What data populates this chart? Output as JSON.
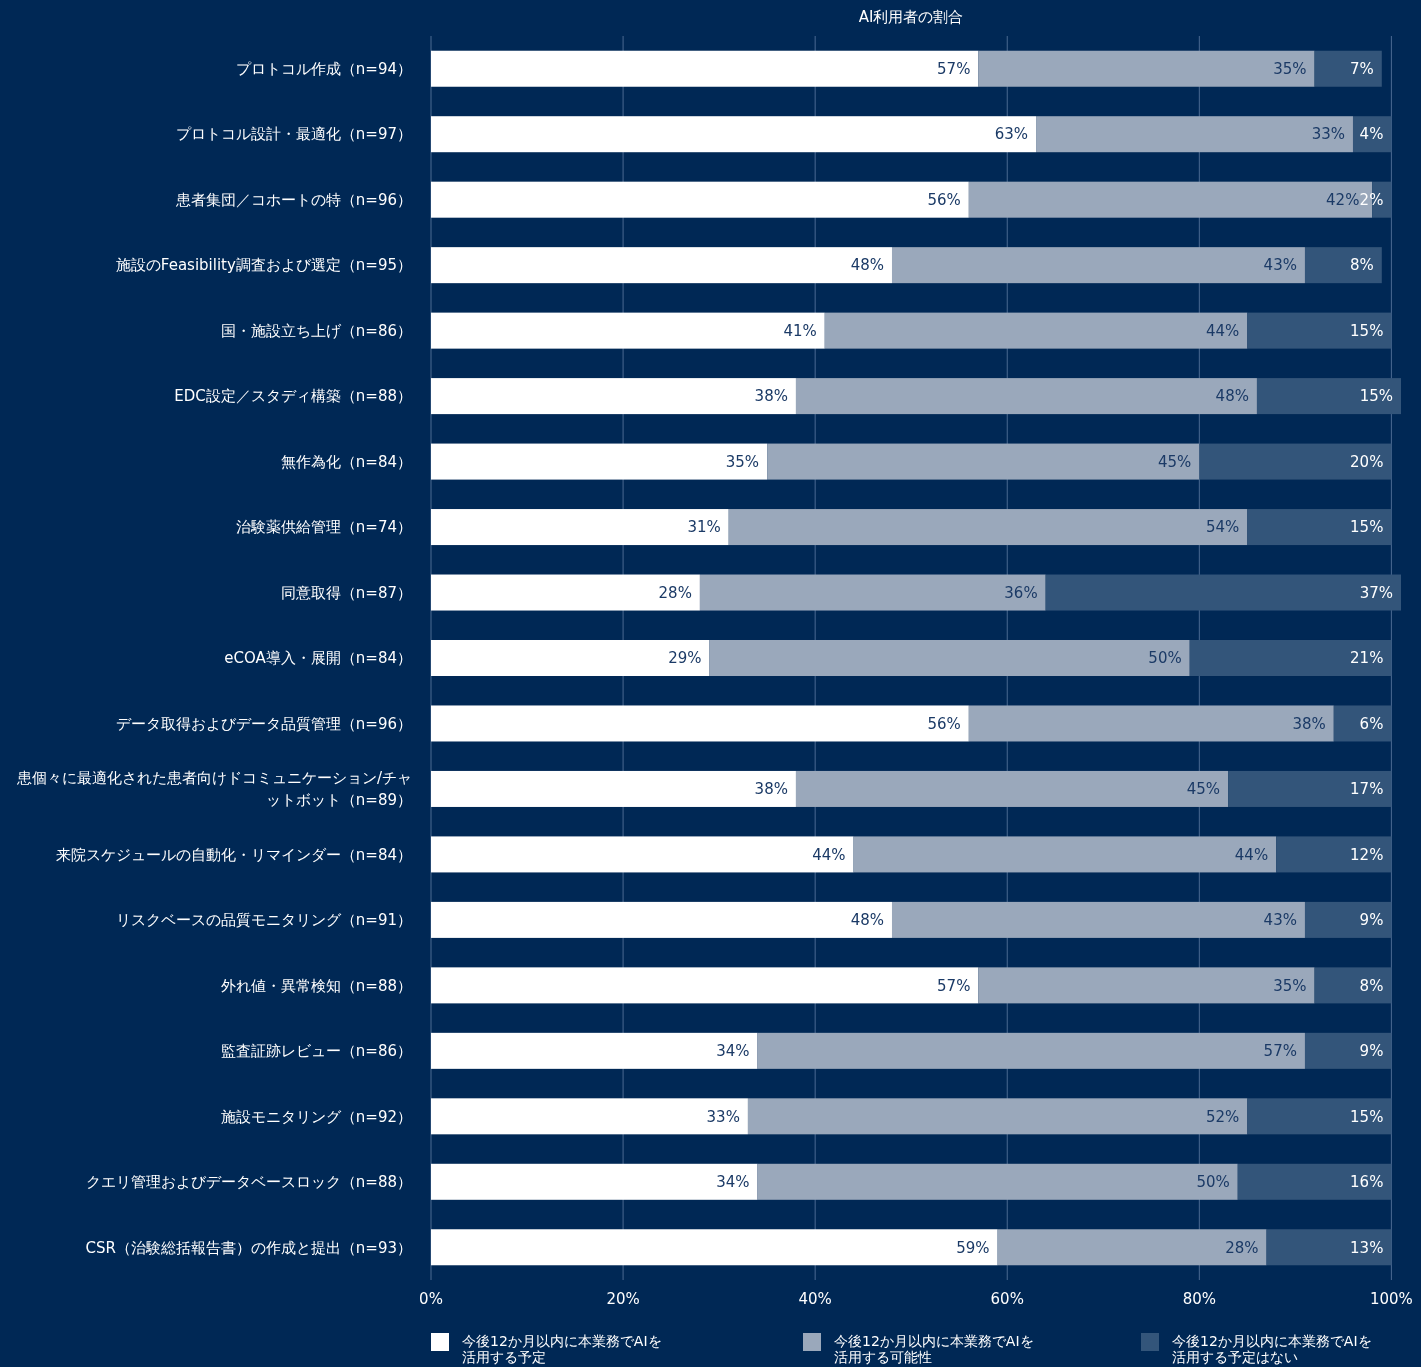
{
  "chart_data": {
    "type": "bar",
    "orientation": "horizontal",
    "stacked": true,
    "title": "AI利用者の割合",
    "categories": [
      "プロトコル作成（n=94）",
      "プロトコル設計・最適化（n=97）",
      "患者集団／コホートの特（n=96）",
      "施設のFeasibility調査および選定（n=95）",
      "国・施設立ち上げ（n=86）",
      "EDC設定／スタディ構築（n=88）",
      "無作為化（n=84）",
      "治験薬供給管理（n=74）",
      "同意取得（n=87）",
      "eCOA導入・展開（n=84）",
      "データ取得およびデータ品質管理（n=96）",
      "患個々に最適化された患者向けドコミュニケーション/チャットボット（n=89）",
      "来院スケジュールの自動化・リマインダー（n=84）",
      "リスクベースの品質モニタリング（n=91）",
      "外れ値・異常検知（n=88）",
      "監査証跡レビュー（n=86）",
      "施設モニタリング（n=92）",
      "クエリ管理およびデータベースロック（n=88）",
      "CSR（治験総括報告書）の作成と提出（n=93）"
    ],
    "series": [
      {
        "name": "今後12か月以内に本業務でAIを活用する予定",
        "color": "#ffffff",
        "values": [
          57,
          63,
          56,
          48,
          41,
          38,
          35,
          31,
          28,
          29,
          56,
          38,
          44,
          48,
          57,
          34,
          33,
          34,
          59
        ],
        "value_labels": [
          "57%",
          "63%",
          "56%",
          "48%",
          "41%",
          "38%",
          "35%",
          "31%",
          "28%",
          "29%",
          "56%",
          "38%",
          "44%",
          "48%",
          "57%",
          "34%",
          "33%",
          "34%",
          "59%"
        ]
      },
      {
        "name": "今後12か月以内に本業務でAIを活用する可能性",
        "color": "#9aa8bb",
        "values": [
          35,
          33,
          42,
          43,
          44,
          48,
          45,
          54,
          36,
          50,
          38,
          45,
          44,
          43,
          35,
          57,
          52,
          50,
          28
        ],
        "value_labels": [
          "35%",
          "33%",
          "42%",
          "43%",
          "44%",
          "48%",
          "45%",
          "54%",
          "36%",
          "50%",
          "38%",
          "45%",
          "44%",
          "43%",
          "35%",
          "57%",
          "52%",
          "50%",
          "28%"
        ]
      },
      {
        "name": "今後12か月以内に本業務でAIを活用する予定はない",
        "color": "#33557a",
        "values": [
          7,
          4,
          2,
          8,
          15,
          15,
          20,
          15,
          37,
          21,
          6,
          17,
          12,
          9,
          8,
          9,
          15,
          16,
          13
        ],
        "value_labels": [
          "7%",
          "4%",
          "2%",
          "8%",
          "15%",
          "15%",
          "20%",
          "15%",
          "37%",
          "21%",
          "6%",
          "17%",
          "12%",
          "9%",
          "8%",
          "9%",
          "15%",
          "16%",
          "13%"
        ]
      }
    ],
    "xlim": [
      0,
      101
    ],
    "xticks": [
      {
        "value": 0,
        "label": "0%"
      },
      {
        "value": 20,
        "label": "20%"
      },
      {
        "value": 40,
        "label": "40%"
      },
      {
        "value": 60,
        "label": "60%"
      },
      {
        "value": 80,
        "label": "80%"
      },
      {
        "value": 100,
        "label": "100%"
      }
    ],
    "grid": "x",
    "legend": "bottom"
  }
}
